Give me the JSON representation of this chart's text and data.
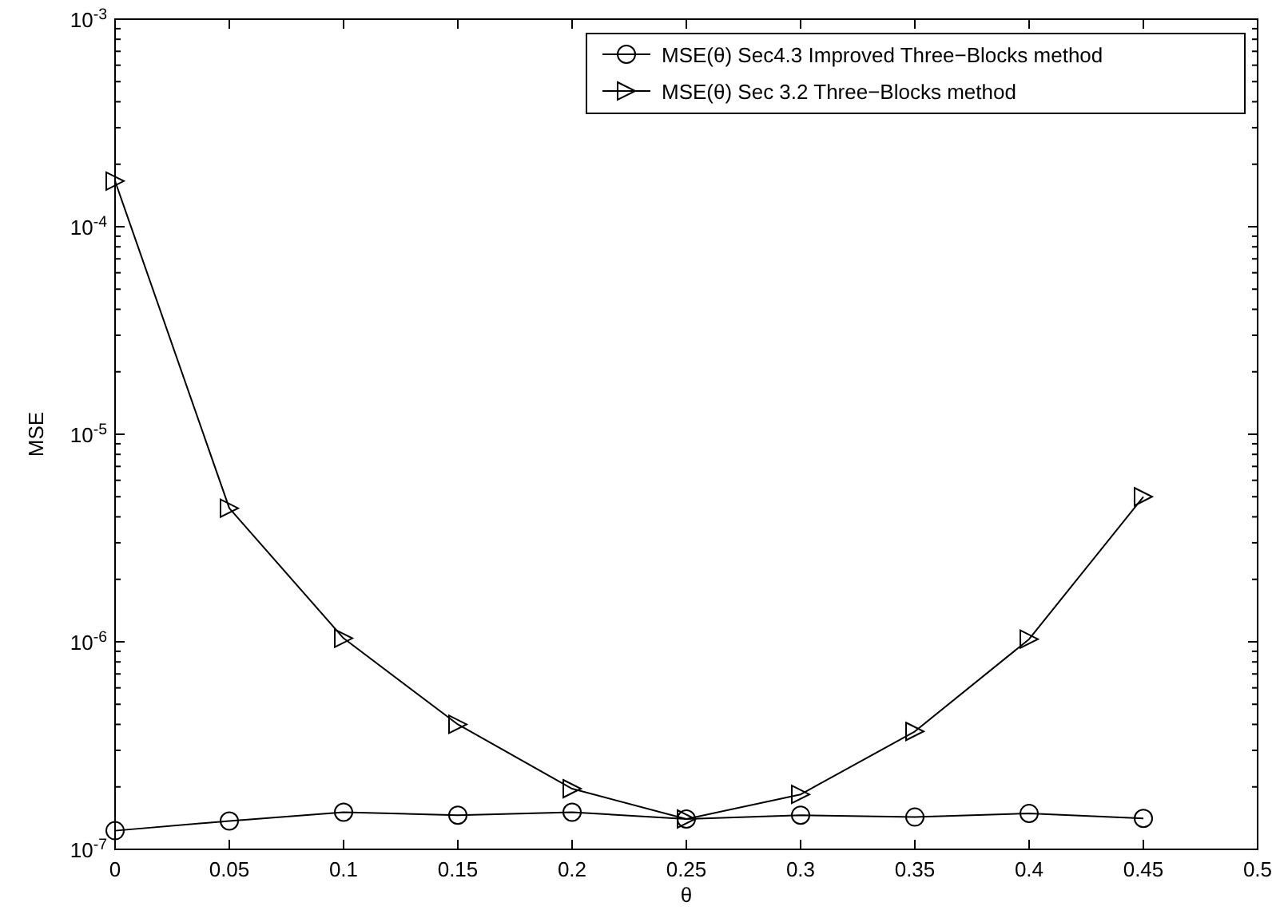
{
  "chart_data": {
    "type": "line",
    "xlabel": "θ",
    "ylabel": "MSE",
    "log": "y",
    "grid": false,
    "legend": "top right",
    "line_style": "solid",
    "x": [
      0,
      0.05,
      0.1,
      0.15,
      0.2,
      0.25,
      0.3,
      0.35,
      0.4,
      0.45
    ],
    "series": [
      {
        "name": "MSE(θ) Sec4.3 Improved Three−Blocks method",
        "color": "#000000",
        "marker": "circle",
        "values": [
          1.23e-07,
          1.37e-07,
          1.51e-07,
          1.46e-07,
          1.51e-07,
          1.4e-07,
          1.46e-07,
          1.43e-07,
          1.49e-07,
          1.41e-07
        ]
      },
      {
        "name": "MSE(θ) Sec 3.2 Three−Blocks method",
        "color": "#000000",
        "marker": "triangle",
        "values": [
          0.000166,
          4.4e-06,
          1.04e-06,
          4e-07,
          1.96e-07,
          1.4e-07,
          1.84e-07,
          3.7e-07,
          1.03e-06,
          5e-06
        ]
      }
    ],
    "xlim": [
      0,
      0.5
    ],
    "xticks": [
      0,
      0.05,
      0.1,
      0.15,
      0.2,
      0.25,
      0.3,
      0.35,
      0.4,
      0.45,
      0.5
    ],
    "ylim": [
      1e-07,
      0.001
    ],
    "yticks": [
      {
        "value": 1e-07,
        "label": "10$^{-7}$"
      },
      {
        "value": 2e-07,
        "label": null
      },
      {
        "value": 3e-07,
        "label": null
      },
      {
        "value": 4e-07,
        "label": null
      },
      {
        "value": 5e-07,
        "label": null
      },
      {
        "value": 6e-07,
        "label": null
      },
      {
        "value": 7e-07,
        "label": null
      },
      {
        "value": 8e-07,
        "label": null
      },
      {
        "value": 9e-07,
        "label": null
      },
      {
        "value": 1e-06,
        "label": "10$^{-6}$"
      },
      {
        "value": 2e-06,
        "label": null
      },
      {
        "value": 3e-06,
        "label": null
      },
      {
        "value": 4e-06,
        "label": null
      },
      {
        "value": 5e-06,
        "label": null
      },
      {
        "value": 6e-06,
        "label": null
      },
      {
        "value": 7e-06,
        "label": null
      },
      {
        "value": 8e-06,
        "label": null
      },
      {
        "value": 9e-06,
        "label": null
      },
      {
        "value": 1e-05,
        "label": "10$^{-5}$"
      },
      {
        "value": 2e-05,
        "label": null
      },
      {
        "value": 3e-05,
        "label": null
      },
      {
        "value": 4e-05,
        "label": null
      },
      {
        "value": 5e-05,
        "label": null
      },
      {
        "value": 6e-05,
        "label": null
      },
      {
        "value": 7e-05,
        "label": null
      },
      {
        "value": 8e-05,
        "label": null
      },
      {
        "value": 9e-05,
        "label": null
      },
      {
        "value": 0.0001,
        "label": "10$^{-4}$"
      },
      {
        "value": 0.0002,
        "label": null
      },
      {
        "value": 0.0003,
        "label": null
      },
      {
        "value": 0.0004,
        "label": null
      },
      {
        "value": 0.0005,
        "label": null
      },
      {
        "value": 0.0006,
        "label": null
      },
      {
        "value": 0.0007,
        "label": null
      },
      {
        "value": 0.0008,
        "label": null
      },
      {
        "value": 0.0009,
        "label": null
      },
      {
        "value": 0.001,
        "label": "10$^{-3}$"
      }
    ]
  }
}
